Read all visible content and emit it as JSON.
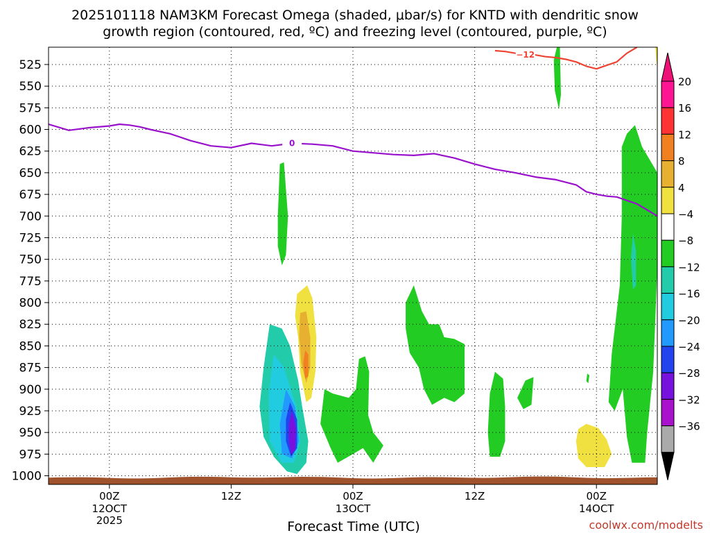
{
  "chart_data": {
    "type": "heatmap",
    "title_line1": "2025101118 NAM3KM Forecast Omega (shaded, μbar/s) for KNTD with dendritic snow",
    "title_line2": "growth region (contoured, red, ºC) and freezing level (contoured, purple, ºC)",
    "xlabel": "Forecast Time (UTC)",
    "credit": "coolwx.com/modelts",
    "y_axis": {
      "reversed": true,
      "ylim": [
        505,
        1010
      ],
      "ticks": [
        525,
        550,
        575,
        600,
        625,
        650,
        675,
        700,
        725,
        750,
        775,
        800,
        825,
        850,
        875,
        900,
        925,
        950,
        975,
        1000
      ]
    },
    "x_axis": {
      "xlim": [
        -6,
        54
      ],
      "ticks": [
        {
          "hour": 0,
          "label1": "00Z",
          "label2": "12OCT",
          "label3": "2025"
        },
        {
          "hour": 12,
          "label1": "12Z",
          "label2": "",
          "label3": ""
        },
        {
          "hour": 24,
          "label1": "00Z",
          "label2": "13OCT",
          "label3": ""
        },
        {
          "hour": 36,
          "label1": "12Z",
          "label2": "",
          "label3": ""
        },
        {
          "hour": 48,
          "label1": "00Z",
          "label2": "14OCT",
          "label3": ""
        }
      ]
    },
    "grid": true,
    "colorbar": {
      "position": "right",
      "levels": [
        {
          "label": "20",
          "color": "#ff1493"
        },
        {
          "label": "16",
          "color": "#ff3333"
        },
        {
          "label": "12",
          "color": "#f08020"
        },
        {
          "label": "8",
          "color": "#e8b030"
        },
        {
          "label": "4",
          "color": "#f0e040"
        },
        {
          "label": "−4",
          "color": "#ffffff"
        },
        {
          "label": "−8",
          "color": "#22cc22"
        },
        {
          "label": "−12",
          "color": "#22ccaa"
        },
        {
          "label": "−16",
          "color": "#22cce0"
        },
        {
          "label": "−20",
          "color": "#2299ff"
        },
        {
          "label": "−24",
          "color": "#2244ee"
        },
        {
          "label": "−28",
          "color": "#7711dd"
        },
        {
          "label": "−32",
          "color": "#aa11cc"
        },
        {
          "label": "−36",
          "color": "#aaaaaa"
        }
      ],
      "top_color": "#ee1177",
      "bottom_color": "#000000"
    },
    "contour_labels": {
      "freezing": "0",
      "dendritic": "−12"
    },
    "freezing_level": {
      "name": "0 ºC",
      "color": "#9911cc",
      "x": [
        -6,
        -4,
        -2,
        0,
        1,
        2,
        3,
        4,
        6,
        8,
        10,
        12,
        14,
        16,
        18,
        20,
        22,
        24,
        26,
        28,
        30,
        32,
        34,
        36,
        38,
        40,
        42,
        44,
        46,
        47,
        48,
        49,
        50,
        51,
        52,
        53,
        54
      ],
      "y": [
        594,
        601,
        598,
        596,
        594,
        595,
        597,
        600,
        605,
        613,
        619,
        621,
        616,
        619,
        616,
        617,
        619,
        625,
        627,
        629,
        630,
        628,
        633,
        640,
        646,
        650,
        655,
        658,
        664,
        672,
        675,
        677,
        678,
        682,
        686,
        693,
        700
      ]
    },
    "dendritic_region": {
      "name": "−12 ºC",
      "color": "#ee4433",
      "x": [
        38,
        39,
        40,
        41,
        42,
        43,
        44,
        45,
        46,
        47,
        48,
        49,
        50,
        51,
        52
      ],
      "y": [
        509,
        510,
        512,
        514,
        514,
        516,
        517,
        519,
        522,
        527,
        530,
        526,
        522,
        512,
        505
      ]
    },
    "omega_regions": [
      {
        "name": "Omega -4 to -8",
        "color": "#22cc22",
        "points": [
          [
            21.2,
            900
          ],
          [
            20.8,
            940
          ],
          [
            21.8,
            968
          ],
          [
            22.5,
            985
          ],
          [
            24,
            975
          ],
          [
            25,
            968
          ],
          [
            26,
            985
          ],
          [
            27,
            965
          ],
          [
            26,
            950
          ],
          [
            25.5,
            930
          ],
          [
            25.6,
            880
          ],
          [
            25.2,
            862
          ],
          [
            24.6,
            865
          ],
          [
            24.3,
            900
          ],
          [
            23.6,
            910
          ],
          [
            22,
            905
          ]
        ]
      },
      {
        "name": "Omega -4 to -8",
        "color": "#22cc22",
        "points": [
          [
            16.8,
            640
          ],
          [
            17.2,
            638
          ],
          [
            17.6,
            700
          ],
          [
            17.4,
            745
          ],
          [
            17,
            757
          ],
          [
            16.6,
            735
          ],
          [
            16.6,
            700
          ]
        ]
      },
      {
        "name": "Omega -4 to -8",
        "color": "#22cc22",
        "points": [
          [
            23.5,
            948
          ],
          [
            24.5,
            952
          ],
          [
            24.2,
            966
          ],
          [
            23.3,
            968
          ],
          [
            22.8,
            960
          ]
        ]
      },
      {
        "name": "Omega -4 to -8",
        "color": "#22cc22",
        "points": [
          [
            29.2,
            800
          ],
          [
            30,
            780
          ],
          [
            30.8,
            810
          ],
          [
            31.5,
            825
          ],
          [
            32.5,
            825
          ],
          [
            33,
            840
          ],
          [
            34,
            842
          ],
          [
            35,
            848
          ],
          [
            35,
            885
          ],
          [
            35,
            905
          ],
          [
            34,
            915
          ],
          [
            33,
            910
          ],
          [
            31.8,
            918
          ],
          [
            31,
            900
          ],
          [
            30.5,
            875
          ],
          [
            29.6,
            858
          ],
          [
            29.2,
            830
          ]
        ]
      },
      {
        "name": "Omega -4 to -8",
        "color": "#22cc22",
        "points": [
          [
            38,
            880
          ],
          [
            38.8,
            888
          ],
          [
            39,
            920
          ],
          [
            39,
            960
          ],
          [
            38.5,
            978
          ],
          [
            37.5,
            978
          ],
          [
            37.3,
            950
          ],
          [
            37.5,
            905
          ]
        ]
      },
      {
        "name": "Omega -4 to -8",
        "color": "#22cc22",
        "points": [
          [
            41,
            890
          ],
          [
            41.8,
            886
          ],
          [
            41.6,
            918
          ],
          [
            40.8,
            923
          ],
          [
            40.2,
            910
          ]
        ]
      },
      {
        "name": "Omega -4 to -8",
        "color": "#22cc22",
        "points": [
          [
            44.1,
            505
          ],
          [
            44.4,
            505
          ],
          [
            44.5,
            560
          ],
          [
            44.3,
            577
          ],
          [
            43.9,
            555
          ],
          [
            43.8,
            520
          ]
        ]
      },
      {
        "name": "Omega -4 to -8",
        "color": "#22cc22",
        "points": [
          [
            47.1,
            882
          ],
          [
            47.3,
            884
          ],
          [
            47.2,
            893
          ],
          [
            47,
            891
          ]
        ]
      },
      {
        "name": "Omega -4 to -8",
        "color": "#22cc22",
        "points": [
          [
            50.5,
            620
          ],
          [
            51,
            605
          ],
          [
            51.8,
            595
          ],
          [
            52.5,
            620
          ],
          [
            53.5,
            640
          ],
          [
            54,
            650
          ],
          [
            54,
            760
          ],
          [
            53.8,
            820
          ],
          [
            53.6,
            880
          ],
          [
            53,
            950
          ],
          [
            52.8,
            985
          ],
          [
            51.5,
            985
          ],
          [
            51,
            955
          ],
          [
            50.6,
            900
          ],
          [
            49.8,
            925
          ],
          [
            49.2,
            915
          ],
          [
            49.5,
            860
          ],
          [
            50.3,
            780
          ],
          [
            50.5,
            700
          ]
        ]
      },
      {
        "name": "Omega -8 to -12",
        "color": "#22ccaa",
        "points": [
          [
            15.8,
            825
          ],
          [
            17,
            830
          ],
          [
            17.8,
            850
          ],
          [
            18.6,
            890
          ],
          [
            19,
            920
          ],
          [
            19.6,
            960
          ],
          [
            19.4,
            985
          ],
          [
            18.5,
            998
          ],
          [
            17.5,
            995
          ],
          [
            16.2,
            978
          ],
          [
            15.2,
            955
          ],
          [
            14.8,
            920
          ],
          [
            15.2,
            875
          ]
        ]
      },
      {
        "name": "Omega -12 to -16",
        "color": "#22cce0",
        "points": [
          [
            16.2,
            860
          ],
          [
            17.2,
            875
          ],
          [
            18.4,
            920
          ],
          [
            18.8,
            960
          ],
          [
            18.2,
            985
          ],
          [
            17,
            985
          ],
          [
            15.8,
            960
          ],
          [
            15.7,
            905
          ]
        ]
      },
      {
        "name": "Omega -16 to -20",
        "color": "#2299ff",
        "points": [
          [
            17.4,
            900
          ],
          [
            18.3,
            920
          ],
          [
            18.7,
            960
          ],
          [
            18,
            980
          ],
          [
            17,
            975
          ],
          [
            16.8,
            940
          ]
        ]
      },
      {
        "name": "Omega -20 to -24",
        "color": "#2244ee",
        "points": [
          [
            17.8,
            915
          ],
          [
            18.5,
            935
          ],
          [
            18.5,
            968
          ],
          [
            17.9,
            978
          ],
          [
            17.4,
            960
          ],
          [
            17.4,
            935
          ]
        ]
      },
      {
        "name": "Omega -24 to -28",
        "color": "#7711dd",
        "points": [
          [
            18,
            925
          ],
          [
            18.4,
            945
          ],
          [
            18.3,
            970
          ],
          [
            17.9,
            975
          ],
          [
            17.7,
            960
          ],
          [
            17.7,
            940
          ]
        ]
      },
      {
        "name": "Omega -8 to -12",
        "color": "#22ccaa",
        "points": [
          [
            51.6,
            720
          ],
          [
            51.9,
            740
          ],
          [
            51.9,
            780
          ],
          [
            51.6,
            785
          ],
          [
            51.4,
            750
          ]
        ]
      },
      {
        "name": "Omega 4 to 8",
        "color": "#f0e040",
        "points": [
          [
            18.5,
            790
          ],
          [
            19.5,
            780
          ],
          [
            20,
            795
          ],
          [
            20.4,
            840
          ],
          [
            20.3,
            880
          ],
          [
            19.9,
            910
          ],
          [
            19.4,
            915
          ],
          [
            18.8,
            880
          ],
          [
            18.6,
            840
          ],
          [
            18.3,
            815
          ]
        ]
      },
      {
        "name": "Omega 8 to 12",
        "color": "#e8b030",
        "points": [
          [
            18.8,
            812
          ],
          [
            19.4,
            810
          ],
          [
            19.8,
            840
          ],
          [
            19.8,
            875
          ],
          [
            19.4,
            893
          ],
          [
            18.9,
            870
          ],
          [
            18.7,
            838
          ]
        ]
      },
      {
        "name": "Omega 12 to 16",
        "color": "#f08020",
        "points": [
          [
            19.3,
            855
          ],
          [
            19.6,
            860
          ],
          [
            19.6,
            885
          ],
          [
            19.3,
            888
          ],
          [
            19.1,
            870
          ]
        ]
      },
      {
        "name": "Omega 4 to 8",
        "color": "#f0e040",
        "points": [
          [
            46.2,
            946
          ],
          [
            47,
            940
          ],
          [
            48.2,
            945
          ],
          [
            49,
            958
          ],
          [
            49.5,
            975
          ],
          [
            48.8,
            990
          ],
          [
            47,
            990
          ],
          [
            46.2,
            980
          ],
          [
            46,
            960
          ]
        ]
      },
      {
        "name": "Omega 4 to 8",
        "color": "#f0e040",
        "points": [
          [
            53.8,
            505
          ],
          [
            54,
            505
          ],
          [
            54,
            530
          ],
          [
            53.9,
            520
          ]
        ]
      }
    ],
    "terrain": {
      "name": "surface",
      "color": "#a0522d",
      "top": 1002
    }
  }
}
